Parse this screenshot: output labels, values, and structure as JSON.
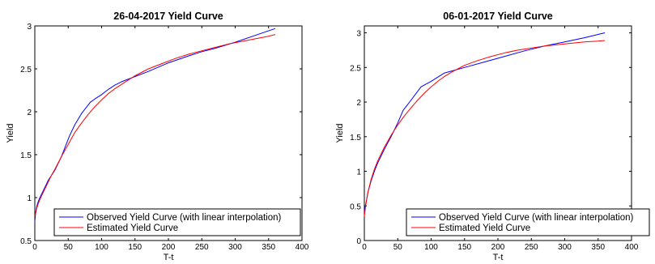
{
  "chart_data": [
    {
      "type": "line",
      "title": "26-04-2017 Yield Curve",
      "xlabel": "T-t",
      "ylabel": "Yield",
      "xlim": [
        0,
        400
      ],
      "ylim": [
        0.5,
        3
      ],
      "xticks": [
        0,
        50,
        100,
        150,
        200,
        250,
        300,
        350,
        400
      ],
      "yticks": [
        0.5,
        1,
        1.5,
        2,
        2.5,
        3
      ],
      "grid": false,
      "legend_position": "bottom-right",
      "series": [
        {
          "name": "Observed Yield Curve (with linear interpolation)",
          "color": "#0000ff",
          "x": [
            0,
            1,
            2,
            3,
            5,
            7,
            10,
            15,
            20,
            30,
            40,
            52,
            60,
            70,
            83,
            90,
            100,
            110,
            120,
            130,
            150,
            170,
            200,
            230,
            250,
            270,
            300,
            330,
            360
          ],
          "y": [
            0.72,
            0.8,
            0.86,
            0.9,
            0.95,
            0.99,
            1.04,
            1.12,
            1.2,
            1.32,
            1.48,
            1.72,
            1.85,
            1.98,
            2.11,
            2.15,
            2.2,
            2.26,
            2.31,
            2.35,
            2.41,
            2.47,
            2.57,
            2.65,
            2.7,
            2.74,
            2.81,
            2.89,
            2.97
          ]
        },
        {
          "name": "Estimated Yield Curve",
          "color": "#ff0000",
          "x": [
            0,
            3,
            6,
            10,
            15,
            20,
            25,
            30,
            40,
            50,
            60,
            70,
            80,
            90,
            100,
            110,
            120,
            130,
            140,
            150,
            170,
            190,
            210,
            230,
            250,
            270,
            290,
            310,
            330,
            350,
            360
          ],
          "y": [
            0.78,
            0.88,
            0.95,
            1.02,
            1.1,
            1.18,
            1.26,
            1.33,
            1.48,
            1.62,
            1.76,
            1.87,
            1.97,
            2.06,
            2.14,
            2.21,
            2.27,
            2.32,
            2.37,
            2.42,
            2.5,
            2.56,
            2.62,
            2.67,
            2.71,
            2.75,
            2.79,
            2.82,
            2.85,
            2.88,
            2.9
          ]
        }
      ]
    },
    {
      "type": "line",
      "title": "06-01-2017 Yield Curve",
      "xlabel": "T-t",
      "ylabel": "Yield",
      "xlim": [
        0,
        400
      ],
      "ylim": [
        0,
        3.1
      ],
      "xticks": [
        0,
        50,
        100,
        150,
        200,
        250,
        300,
        350,
        400
      ],
      "yticks": [
        0,
        0.5,
        1,
        1.5,
        2,
        2.5,
        3
      ],
      "grid": false,
      "legend_position": "bottom-right",
      "series": [
        {
          "name": "Observed Yield Curve (with linear interpolation)",
          "color": "#0000ff",
          "x": [
            0,
            1,
            2,
            3,
            5,
            10,
            15,
            20,
            30,
            40,
            50,
            58,
            70,
            85,
            100,
            120,
            150,
            180,
            210,
            240,
            270,
            300,
            330,
            360
          ],
          "y": [
            0.4,
            0.47,
            0.52,
            0.57,
            0.68,
            0.86,
            1.0,
            1.12,
            1.32,
            1.5,
            1.7,
            1.88,
            2.03,
            2.22,
            2.3,
            2.42,
            2.5,
            2.58,
            2.66,
            2.74,
            2.81,
            2.87,
            2.93,
            3.0
          ]
        },
        {
          "name": "Estimated Yield Curve",
          "color": "#ff0000",
          "x": [
            0,
            2,
            4,
            6,
            10,
            15,
            20,
            30,
            40,
            50,
            60,
            70,
            80,
            90,
            100,
            110,
            120,
            130,
            140,
            150,
            170,
            190,
            210,
            230,
            250,
            270,
            290,
            310,
            330,
            350,
            360
          ],
          "y": [
            0.35,
            0.5,
            0.62,
            0.72,
            0.88,
            1.03,
            1.15,
            1.35,
            1.52,
            1.67,
            1.8,
            1.92,
            2.03,
            2.13,
            2.22,
            2.3,
            2.37,
            2.43,
            2.48,
            2.53,
            2.6,
            2.66,
            2.71,
            2.75,
            2.78,
            2.81,
            2.83,
            2.85,
            2.87,
            2.88,
            2.89
          ]
        }
      ]
    }
  ]
}
